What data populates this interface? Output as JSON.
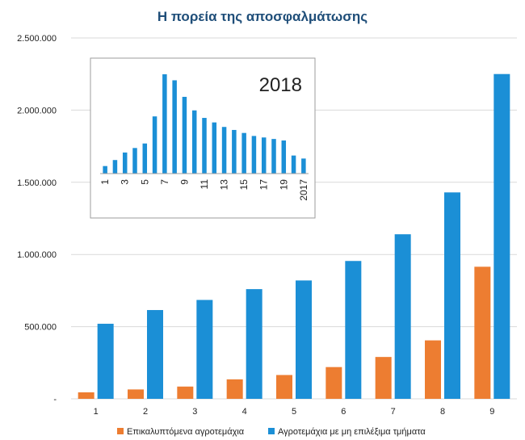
{
  "title": "Η πορεία της αποσφαλμάτωσης",
  "colors": {
    "series1": "#ed7d31",
    "series2": "#1b8fd6",
    "title": "#1f4e79",
    "grid": "#d9d9d9"
  },
  "chart_data": [
    {
      "type": "bar",
      "title": "Η πορεία της αποσφαλμάτωσης",
      "categories": [
        "1",
        "2",
        "3",
        "4",
        "5",
        "6",
        "7",
        "8",
        "9"
      ],
      "series": [
        {
          "name": "Επικαλυπτόμενα αγροτεμάχια",
          "values": [
            45000,
            65000,
            85000,
            135000,
            165000,
            220000,
            290000,
            405000,
            915000
          ]
        },
        {
          "name": "Αγροτεμάχια με μη επιλέξιμα τμήματα",
          "values": [
            520000,
            615000,
            685000,
            760000,
            820000,
            955000,
            1140000,
            1430000,
            2250000
          ]
        }
      ],
      "ylim": [
        0,
        2500000
      ],
      "yticks": [
        "-",
        "500.000",
        "1.000.000",
        "1.500.000",
        "2.000.000",
        "2.500.000"
      ],
      "grid": true,
      "legend_position": "bottom"
    },
    {
      "type": "bar",
      "label": "2018",
      "categories": [
        "1",
        "2",
        "3",
        "4",
        "5",
        "6",
        "7",
        "8",
        "9",
        "10",
        "11",
        "12",
        "13",
        "14",
        "15",
        "16",
        "17",
        "18",
        "19",
        "20",
        "2017"
      ],
      "tick_labels": [
        "1",
        "3",
        "5",
        "7",
        "9",
        "11",
        "13",
        "15",
        "17",
        "19",
        "2017"
      ],
      "values": [
        5,
        9,
        14,
        17,
        20,
        38,
        66,
        62,
        51,
        42,
        37,
        34,
        31,
        29,
        27,
        25,
        24,
        23,
        22,
        12,
        10
      ],
      "grid": false
    }
  ]
}
